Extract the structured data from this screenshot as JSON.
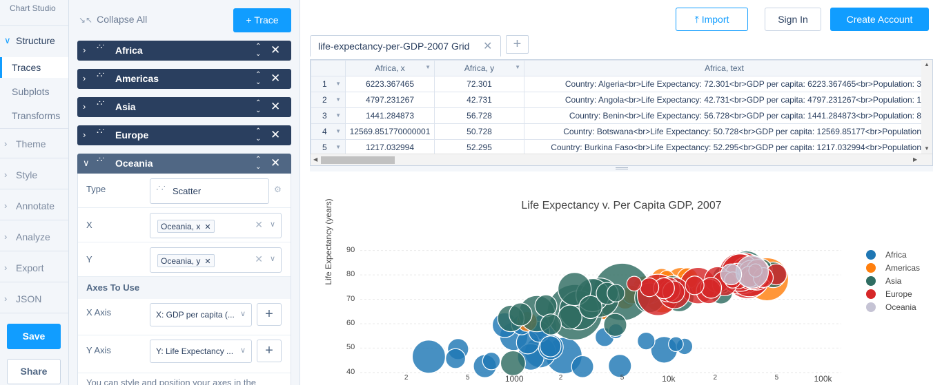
{
  "app": {
    "brand": "Chart Studio"
  },
  "nav": {
    "structure": {
      "label": "Structure",
      "items": [
        "Traces",
        "Subplots",
        "Transforms"
      ]
    },
    "sections": [
      "Theme",
      "Style",
      "Annotate",
      "Analyze",
      "Export",
      "JSON"
    ],
    "save_label": "Save",
    "share_label": "Share"
  },
  "panel": {
    "collapse_label": "Collapse All",
    "trace_button_label": "Trace",
    "traces": [
      "Africa",
      "Americas",
      "Asia",
      "Europe",
      "Oceania"
    ],
    "open_trace": {
      "type_label": "Type",
      "type_value": "Scatter",
      "x_label": "X",
      "x_value": "Oceania, x",
      "y_label": "Y",
      "y_value": "Oceania, y",
      "axes_header": "Axes To Use",
      "x_axis_label": "X Axis",
      "x_axis_value": "X: GDP per capita (...",
      "y_axis_label": "Y Axis",
      "y_axis_value": "Y: Life Expectancy ...",
      "footer_text": "You can style and position your axes in the"
    }
  },
  "topbar": {
    "import_label": "Import",
    "signin_label": "Sign In",
    "create_label": "Create Account"
  },
  "grid": {
    "tab_label": "life-expectancy-per-GDP-2007 Grid",
    "columns": [
      "Africa, x",
      "Africa, y",
      "Africa, text"
    ],
    "rows": [
      [
        "1",
        "6223.367465",
        "72.301",
        "Country: Algeria<br>Life Expectancy: 72.301<br>GDP per capita: 6223.367465<br>Population: 3"
      ],
      [
        "2",
        "4797.231267",
        "42.731",
        "Country: Angola<br>Life Expectancy: 42.731<br>GDP per capita: 4797.231267<br>Population: 1"
      ],
      [
        "3",
        "1441.284873",
        "56.728",
        "Country: Benin<br>Life Expectancy: 56.728<br>GDP per capita: 1441.284873<br>Population: 8"
      ],
      [
        "4",
        "12569.851770000001",
        "50.728",
        "Country: Botswana<br>Life Expectancy: 50.728<br>GDP per capita: 12569.85177<br>Population"
      ],
      [
        "5",
        "1217.032994",
        "52.295",
        "Country: Burkina Faso<br>Life Expectancy: 52.295<br>GDP per capita: 1217.032994<br>Population"
      ]
    ]
  },
  "chart_data": {
    "type": "scatter",
    "title": "Life Expectancy v. Per Capita GDP, 2007",
    "ylabel": "Life Expectancy (years)",
    "xlabel": "",
    "x_scale": "log",
    "x_ticks": [
      {
        "v": 200,
        "label": "2"
      },
      {
        "v": 500,
        "label": "5"
      },
      {
        "v": 1000,
        "label": "1000"
      },
      {
        "v": 2000,
        "label": "2"
      },
      {
        "v": 5000,
        "label": "5"
      },
      {
        "v": 10000,
        "label": "10k"
      },
      {
        "v": 20000,
        "label": "2"
      },
      {
        "v": 50000,
        "label": "5"
      },
      {
        "v": 100000,
        "label": "100k"
      }
    ],
    "y_ticks": [
      40,
      50,
      60,
      70,
      80,
      90
    ],
    "xlim": [
      100,
      130000
    ],
    "ylim": [
      36,
      93
    ],
    "legend_position": "right",
    "series": [
      {
        "name": "Africa",
        "color": "#1f77b4",
        "points": [
          {
            "x": 6223,
            "y": 72.3,
            "s": 8
          },
          {
            "x": 4797,
            "y": 42.7,
            "s": 12
          },
          {
            "x": 1441,
            "y": 56.7,
            "s": 10
          },
          {
            "x": 12570,
            "y": 50.7,
            "s": 6
          },
          {
            "x": 1217,
            "y": 52.3,
            "s": 12
          },
          {
            "x": 430,
            "y": 49.6,
            "s": 10
          },
          {
            "x": 1713,
            "y": 50.4,
            "s": 14
          },
          {
            "x": 706,
            "y": 44.7,
            "s": 7
          },
          {
            "x": 1704,
            "y": 50.7,
            "s": 10
          },
          {
            "x": 278,
            "y": 46.5,
            "s": 25
          },
          {
            "x": 2082,
            "y": 46.9,
            "s": 30
          },
          {
            "x": 986,
            "y": 54.8,
            "s": 18
          },
          {
            "x": 1463,
            "y": 48.3,
            "s": 22
          },
          {
            "x": 9270,
            "y": 49.3,
            "s": 16
          },
          {
            "x": 1545,
            "y": 58.6,
            "s": 15
          },
          {
            "x": 862,
            "y": 59.4,
            "s": 14
          },
          {
            "x": 5581,
            "y": 71.3,
            "s": 8
          },
          {
            "x": 7093,
            "y": 52.9,
            "s": 7
          },
          {
            "x": 641,
            "y": 42.6,
            "s": 12
          },
          {
            "x": 3632,
            "y": 65.5,
            "s": 7
          },
          {
            "x": 2749,
            "y": 42.4,
            "s": 11
          },
          {
            "x": 4513,
            "y": 56.9,
            "s": 5
          },
          {
            "x": 3820,
            "y": 54.5,
            "s": 8
          },
          {
            "x": 11054,
            "y": 51.6,
            "s": 5
          },
          {
            "x": 1271,
            "y": 46.4,
            "s": 16
          },
          {
            "x": 1107,
            "y": 59.5,
            "s": 9
          },
          {
            "x": 414,
            "y": 45.7,
            "s": 9
          }
        ]
      },
      {
        "name": "Americas",
        "color": "#ff7f0e",
        "points": [
          {
            "x": 12779,
            "y": 75.3,
            "s": 13
          },
          {
            "x": 3822,
            "y": 65.6,
            "s": 8
          },
          {
            "x": 9066,
            "y": 72.4,
            "s": 34
          },
          {
            "x": 36319,
            "y": 80.7,
            "s": 14
          },
          {
            "x": 13172,
            "y": 78.6,
            "s": 10
          },
          {
            "x": 7007,
            "y": 72.9,
            "s": 15
          },
          {
            "x": 9645,
            "y": 78.8,
            "s": 5
          },
          {
            "x": 8948,
            "y": 78.3,
            "s": 10
          },
          {
            "x": 6025,
            "y": 72.2,
            "s": 9
          },
          {
            "x": 6873,
            "y": 75.0,
            "s": 11
          },
          {
            "x": 5728,
            "y": 71.9,
            "s": 8
          },
          {
            "x": 5186,
            "y": 70.3,
            "s": 10
          },
          {
            "x": 1202,
            "y": 60.9,
            "s": 9
          },
          {
            "x": 11978,
            "y": 76.2,
            "s": 25
          },
          {
            "x": 7409,
            "y": 73.7,
            "s": 17
          },
          {
            "x": 42952,
            "y": 78.2,
            "s": 42
          },
          {
            "x": 10611,
            "y": 76.4,
            "s": 7
          },
          {
            "x": 11416,
            "y": 73.7,
            "s": 15
          }
        ]
      },
      {
        "name": "Asia",
        "color": "#2f6d62",
        "points": [
          {
            "x": 975,
            "y": 43.8,
            "s": 14
          },
          {
            "x": 29796,
            "y": 75.6,
            "s": 5
          },
          {
            "x": 1391,
            "y": 64.1,
            "s": 30
          },
          {
            "x": 1714,
            "y": 59.7,
            "s": 10
          },
          {
            "x": 4959,
            "y": 73.0,
            "s": 75
          },
          {
            "x": 39725,
            "y": 82.2,
            "s": 10
          },
          {
            "x": 2452,
            "y": 64.7,
            "s": 70
          },
          {
            "x": 3541,
            "y": 70.7,
            "s": 35
          },
          {
            "x": 11606,
            "y": 71.0,
            "s": 20
          },
          {
            "x": 4471,
            "y": 59.5,
            "s": 12
          },
          {
            "x": 25523,
            "y": 80.7,
            "s": 7
          },
          {
            "x": 31656,
            "y": 82.6,
            "s": 28
          },
          {
            "x": 4519,
            "y": 72.5,
            "s": 7
          },
          {
            "x": 1593,
            "y": 67.3,
            "s": 11
          },
          {
            "x": 23348,
            "y": 78.6,
            "s": 17
          },
          {
            "x": 10461,
            "y": 74.2,
            "s": 16
          },
          {
            "x": 3095,
            "y": 66.8,
            "s": 12
          },
          {
            "x": 944,
            "y": 62.1,
            "s": 16
          },
          {
            "x": 1091,
            "y": 63.8,
            "s": 12
          },
          {
            "x": 22316,
            "y": 75.6,
            "s": 5
          },
          {
            "x": 2606,
            "y": 65.5,
            "s": 35
          },
          {
            "x": 3190,
            "y": 71.7,
            "s": 25
          },
          {
            "x": 21655,
            "y": 72.8,
            "s": 12
          },
          {
            "x": 47143,
            "y": 80.0,
            "s": 15
          },
          {
            "x": 3970,
            "y": 72.4,
            "s": 11
          },
          {
            "x": 28718,
            "y": 78.4,
            "s": 13
          },
          {
            "x": 7458,
            "y": 70.6,
            "s": 20
          },
          {
            "x": 2442,
            "y": 74.2,
            "s": 25
          },
          {
            "x": 2281,
            "y": 62.7,
            "s": 13
          }
        ]
      },
      {
        "name": "Europe",
        "color": "#d62728",
        "points": [
          {
            "x": 5937,
            "y": 76.4,
            "s": 5
          },
          {
            "x": 36126,
            "y": 79.8,
            "s": 15
          },
          {
            "x": 33693,
            "y": 79.4,
            "s": 16
          },
          {
            "x": 7446,
            "y": 74.9,
            "s": 8
          },
          {
            "x": 10681,
            "y": 73.0,
            "s": 11
          },
          {
            "x": 14619,
            "y": 75.7,
            "s": 8
          },
          {
            "x": 22833,
            "y": 76.5,
            "s": 14
          },
          {
            "x": 35278,
            "y": 78.3,
            "s": 10
          },
          {
            "x": 33207,
            "y": 79.3,
            "s": 10
          },
          {
            "x": 30470,
            "y": 80.7,
            "s": 38
          },
          {
            "x": 32170,
            "y": 79.4,
            "s": 45
          },
          {
            "x": 27538,
            "y": 79.5,
            "s": 15
          },
          {
            "x": 18008,
            "y": 73.3,
            "s": 14
          },
          {
            "x": 36181,
            "y": 81.8,
            "s": 4
          },
          {
            "x": 40676,
            "y": 78.9,
            "s": 9
          },
          {
            "x": 28570,
            "y": 80.5,
            "s": 38
          },
          {
            "x": 9254,
            "y": 74.5,
            "s": 10
          },
          {
            "x": 36798,
            "y": 79.8,
            "s": 20
          },
          {
            "x": 49357,
            "y": 80.2,
            "s": 10
          },
          {
            "x": 15390,
            "y": 75.6,
            "s": 30
          },
          {
            "x": 20510,
            "y": 78.1,
            "s": 15
          },
          {
            "x": 10808,
            "y": 72.5,
            "s": 22
          },
          {
            "x": 9787,
            "y": 74.0,
            "s": 14
          },
          {
            "x": 18678,
            "y": 74.7,
            "s": 10
          },
          {
            "x": 25768,
            "y": 77.9,
            "s": 6
          },
          {
            "x": 28821,
            "y": 80.9,
            "s": 32
          },
          {
            "x": 33860,
            "y": 80.9,
            "s": 14
          },
          {
            "x": 37506,
            "y": 81.7,
            "s": 12
          },
          {
            "x": 8458,
            "y": 71.8,
            "s": 39
          },
          {
            "x": 33203,
            "y": 79.4,
            "s": 38
          }
        ]
      },
      {
        "name": "Oceania",
        "color": "#c5c3d4",
        "points": [
          {
            "x": 34435,
            "y": 81.2,
            "s": 24
          },
          {
            "x": 25185,
            "y": 80.2,
            "s": 10
          }
        ]
      }
    ]
  }
}
